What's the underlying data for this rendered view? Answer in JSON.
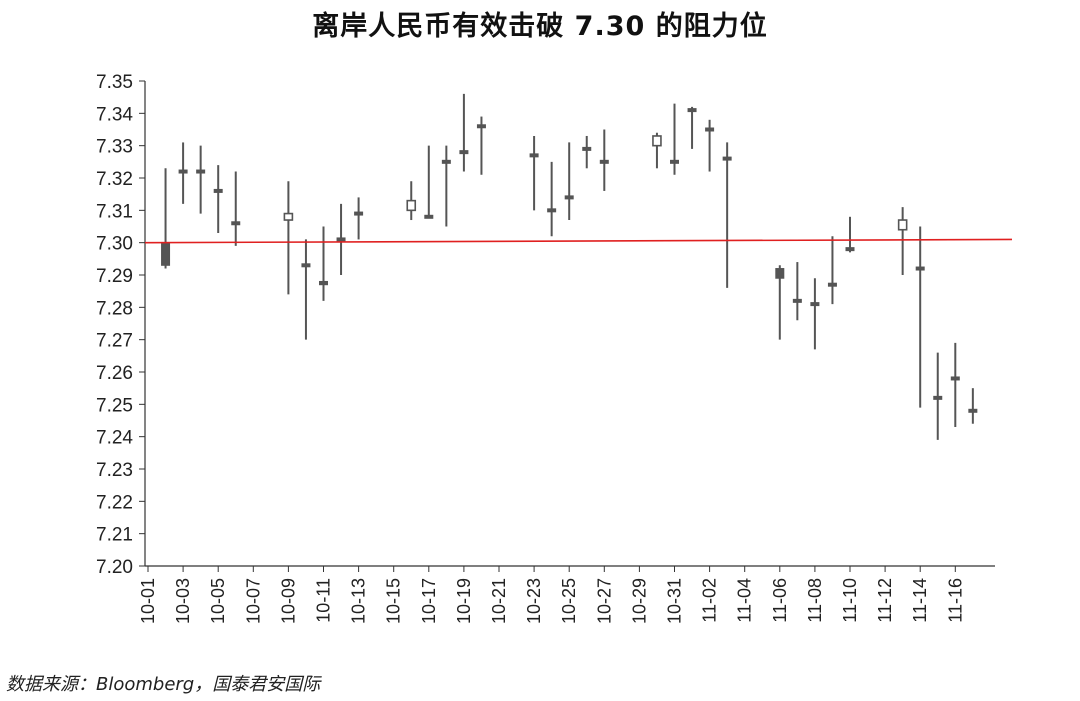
{
  "chart_data": {
    "type": "candlestick",
    "title": "离岸人民币有效击破 7.30 的阻力位",
    "source": "数据来源：Bloomberg，国泰君安国际",
    "ylim": [
      7.2,
      7.35
    ],
    "y_ticks": [
      "7.35",
      "7.34",
      "7.33",
      "7.32",
      "7.31",
      "7.30",
      "7.29",
      "7.28",
      "7.27",
      "7.26",
      "7.25",
      "7.24",
      "7.23",
      "7.22",
      "7.21",
      "7.20"
    ],
    "x_ticks": [
      "10-01",
      "10-03",
      "10-05",
      "10-07",
      "10-09",
      "10-11",
      "10-13",
      "10-15",
      "10-17",
      "10-19",
      "10-21",
      "10-23",
      "10-25",
      "10-27",
      "10-29",
      "10-31",
      "11-02",
      "11-04",
      "11-06",
      "11-08",
      "11-10",
      "11-12",
      "11-14",
      "11-16"
    ],
    "reference_line": {
      "value": 7.3,
      "end_value": 7.301,
      "color": "#e02020"
    },
    "colors": {
      "candle": "#555555",
      "axis": "#333333"
    },
    "candles": [
      {
        "date": "10-02",
        "open": 7.3,
        "high": 7.323,
        "low": 7.292,
        "close": 7.293
      },
      {
        "date": "10-03",
        "open": 7.322,
        "high": 7.331,
        "low": 7.312,
        "close": 7.322
      },
      {
        "date": "10-04",
        "open": 7.322,
        "high": 7.33,
        "low": 7.309,
        "close": 7.322
      },
      {
        "date": "10-05",
        "open": 7.316,
        "high": 7.324,
        "low": 7.303,
        "close": 7.316
      },
      {
        "date": "10-06",
        "open": 7.306,
        "high": 7.322,
        "low": 7.299,
        "close": 7.306
      },
      {
        "date": "10-09",
        "open": 7.307,
        "high": 7.319,
        "low": 7.284,
        "close": 7.309
      },
      {
        "date": "10-10",
        "open": 7.293,
        "high": 7.301,
        "low": 7.27,
        "close": 7.293
      },
      {
        "date": "10-11",
        "open": 7.288,
        "high": 7.305,
        "low": 7.282,
        "close": 7.287
      },
      {
        "date": "10-12",
        "open": 7.301,
        "high": 7.312,
        "low": 7.29,
        "close": 7.301
      },
      {
        "date": "10-13",
        "open": 7.309,
        "high": 7.314,
        "low": 7.301,
        "close": 7.309
      },
      {
        "date": "10-16",
        "open": 7.31,
        "high": 7.319,
        "low": 7.307,
        "close": 7.313
      },
      {
        "date": "10-17",
        "open": 7.308,
        "high": 7.33,
        "low": 7.308,
        "close": 7.308
      },
      {
        "date": "10-18",
        "open": 7.325,
        "high": 7.33,
        "low": 7.305,
        "close": 7.325
      },
      {
        "date": "10-19",
        "open": 7.328,
        "high": 7.346,
        "low": 7.322,
        "close": 7.328
      },
      {
        "date": "10-20",
        "open": 7.336,
        "high": 7.339,
        "low": 7.321,
        "close": 7.336
      },
      {
        "date": "10-23",
        "open": 7.327,
        "high": 7.333,
        "low": 7.31,
        "close": 7.327
      },
      {
        "date": "10-24",
        "open": 7.31,
        "high": 7.325,
        "low": 7.302,
        "close": 7.31
      },
      {
        "date": "10-25",
        "open": 7.314,
        "high": 7.331,
        "low": 7.307,
        "close": 7.314
      },
      {
        "date": "10-26",
        "open": 7.329,
        "high": 7.333,
        "low": 7.323,
        "close": 7.329
      },
      {
        "date": "10-27",
        "open": 7.325,
        "high": 7.335,
        "low": 7.316,
        "close": 7.325
      },
      {
        "date": "10-30",
        "open": 7.33,
        "high": 7.334,
        "low": 7.323,
        "close": 7.333
      },
      {
        "date": "10-31",
        "open": 7.325,
        "high": 7.343,
        "low": 7.321,
        "close": 7.325
      },
      {
        "date": "11-01",
        "open": 7.341,
        "high": 7.342,
        "low": 7.329,
        "close": 7.341
      },
      {
        "date": "11-02",
        "open": 7.335,
        "high": 7.338,
        "low": 7.322,
        "close": 7.335
      },
      {
        "date": "11-03",
        "open": 7.326,
        "high": 7.331,
        "low": 7.286,
        "close": 7.326
      },
      {
        "date": "11-06",
        "open": 7.292,
        "high": 7.293,
        "low": 7.27,
        "close": 7.289
      },
      {
        "date": "11-07",
        "open": 7.282,
        "high": 7.294,
        "low": 7.276,
        "close": 7.282
      },
      {
        "date": "11-08",
        "open": 7.281,
        "high": 7.289,
        "low": 7.267,
        "close": 7.281
      },
      {
        "date": "11-09",
        "open": 7.287,
        "high": 7.302,
        "low": 7.281,
        "close": 7.287
      },
      {
        "date": "11-10",
        "open": 7.298,
        "high": 7.308,
        "low": 7.297,
        "close": 7.298
      },
      {
        "date": "11-13",
        "open": 7.304,
        "high": 7.311,
        "low": 7.29,
        "close": 7.307
      },
      {
        "date": "11-14",
        "open": 7.292,
        "high": 7.305,
        "low": 7.249,
        "close": 7.292
      },
      {
        "date": "11-15",
        "open": 7.252,
        "high": 7.266,
        "low": 7.239,
        "close": 7.252
      },
      {
        "date": "11-16",
        "open": 7.258,
        "high": 7.269,
        "low": 7.243,
        "close": 7.258
      },
      {
        "date": "11-17",
        "open": 7.248,
        "high": 7.255,
        "low": 7.244,
        "close": 7.248
      }
    ]
  }
}
